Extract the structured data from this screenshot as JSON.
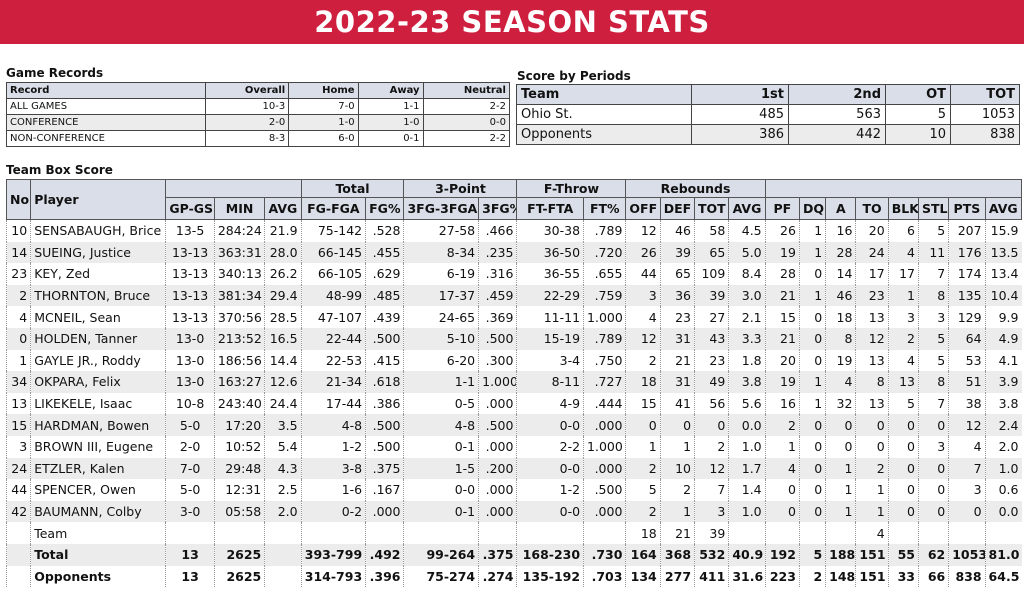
{
  "title": "2022-23 SEASON STATS",
  "game_records": {
    "heading": "Game Records",
    "headers": [
      "Record",
      "Overall",
      "Home",
      "Away",
      "Neutral"
    ],
    "rows": [
      [
        "ALL GAMES",
        "10-3",
        "7-0",
        "1-1",
        "2-2"
      ],
      [
        "CONFERENCE",
        "2-0",
        "1-0",
        "1-0",
        "0-0"
      ],
      [
        "NON-CONFERENCE",
        "8-3",
        "6-0",
        "0-1",
        "2-2"
      ]
    ]
  },
  "score_by_periods": {
    "heading": "Score by Periods",
    "headers": [
      "Team",
      "1st",
      "2nd",
      "OT",
      "TOT"
    ],
    "rows": [
      [
        "Ohio St.",
        "485",
        "563",
        "5",
        "1053"
      ],
      [
        "Opponents",
        "386",
        "442",
        "10",
        "838"
      ]
    ]
  },
  "team_box_score": {
    "heading": "Team Box Score",
    "group_headers": {
      "no": "No.",
      "player": "Player",
      "total": "Total",
      "three_point": "3-Point",
      "free_throw": "F-Throw",
      "rebounds": "Rebounds"
    },
    "columns": [
      "GP-GS",
      "MIN",
      "AVG",
      "FG-FGA",
      "FG%",
      "3FG-3FGA",
      "3FG%",
      "FT-FTA",
      "FT%",
      "OFF",
      "DEF",
      "TOT",
      "AVG",
      "PF",
      "DQ",
      "A",
      "TO",
      "BLK",
      "STL",
      "PTS",
      "AVG"
    ],
    "players": [
      [
        "10",
        "SENSABAUGH, Brice",
        "13-5",
        "284:24",
        "21.9",
        "75-142",
        ".528",
        "27-58",
        ".466",
        "30-38",
        ".789",
        "12",
        "46",
        "58",
        "4.5",
        "26",
        "1",
        "16",
        "20",
        "6",
        "5",
        "207",
        "15.9"
      ],
      [
        "14",
        "SUEING, Justice",
        "13-13",
        "363:31",
        "28.0",
        "66-145",
        ".455",
        "8-34",
        ".235",
        "36-50",
        ".720",
        "26",
        "39",
        "65",
        "5.0",
        "19",
        "1",
        "28",
        "24",
        "4",
        "11",
        "176",
        "13.5"
      ],
      [
        "23",
        "KEY, Zed",
        "13-13",
        "340:13",
        "26.2",
        "66-105",
        ".629",
        "6-19",
        ".316",
        "36-55",
        ".655",
        "44",
        "65",
        "109",
        "8.4",
        "28",
        "0",
        "14",
        "17",
        "17",
        "7",
        "174",
        "13.4"
      ],
      [
        "2",
        "THORNTON, Bruce",
        "13-13",
        "381:34",
        "29.4",
        "48-99",
        ".485",
        "17-37",
        ".459",
        "22-29",
        ".759",
        "3",
        "36",
        "39",
        "3.0",
        "21",
        "1",
        "46",
        "23",
        "1",
        "8",
        "135",
        "10.4"
      ],
      [
        "4",
        "MCNEIL, Sean",
        "13-13",
        "370:56",
        "28.5",
        "47-107",
        ".439",
        "24-65",
        ".369",
        "11-11",
        "1.000",
        "4",
        "23",
        "27",
        "2.1",
        "15",
        "0",
        "18",
        "13",
        "3",
        "3",
        "129",
        "9.9"
      ],
      [
        "0",
        "HOLDEN, Tanner",
        "13-0",
        "213:52",
        "16.5",
        "22-44",
        ".500",
        "5-10",
        ".500",
        "15-19",
        ".789",
        "12",
        "31",
        "43",
        "3.3",
        "21",
        "0",
        "8",
        "12",
        "2",
        "5",
        "64",
        "4.9"
      ],
      [
        "1",
        "GAYLE JR., Roddy",
        "13-0",
        "186:56",
        "14.4",
        "22-53",
        ".415",
        "6-20",
        ".300",
        "3-4",
        ".750",
        "2",
        "21",
        "23",
        "1.8",
        "20",
        "0",
        "19",
        "13",
        "4",
        "5",
        "53",
        "4.1"
      ],
      [
        "34",
        "OKPARA, Felix",
        "13-0",
        "163:27",
        "12.6",
        "21-34",
        ".618",
        "1-1",
        "1.000",
        "8-11",
        ".727",
        "18",
        "31",
        "49",
        "3.8",
        "19",
        "1",
        "4",
        "8",
        "13",
        "8",
        "51",
        "3.9"
      ],
      [
        "13",
        "LIKEKELE, Isaac",
        "10-8",
        "243:40",
        "24.4",
        "17-44",
        ".386",
        "0-5",
        ".000",
        "4-9",
        ".444",
        "15",
        "41",
        "56",
        "5.6",
        "16",
        "1",
        "32",
        "13",
        "5",
        "7",
        "38",
        "3.8"
      ],
      [
        "15",
        "HARDMAN, Bowen",
        "5-0",
        "17:20",
        "3.5",
        "4-8",
        ".500",
        "4-8",
        ".500",
        "0-0",
        ".000",
        "0",
        "0",
        "0",
        "0.0",
        "2",
        "0",
        "0",
        "0",
        "0",
        "0",
        "12",
        "2.4"
      ],
      [
        "3",
        "BROWN III, Eugene",
        "2-0",
        "10:52",
        "5.4",
        "1-2",
        ".500",
        "0-1",
        ".000",
        "2-2",
        "1.000",
        "1",
        "1",
        "2",
        "1.0",
        "1",
        "0",
        "0",
        "0",
        "0",
        "3",
        "4",
        "2.0"
      ],
      [
        "24",
        "ETZLER, Kalen",
        "7-0",
        "29:48",
        "4.3",
        "3-8",
        ".375",
        "1-5",
        ".200",
        "0-0",
        ".000",
        "2",
        "10",
        "12",
        "1.7",
        "4",
        "0",
        "1",
        "2",
        "0",
        "0",
        "7",
        "1.0"
      ],
      [
        "44",
        "SPENCER, Owen",
        "5-0",
        "12:31",
        "2.5",
        "1-6",
        ".167",
        "0-0",
        ".000",
        "1-2",
        ".500",
        "5",
        "2",
        "7",
        "1.4",
        "0",
        "0",
        "1",
        "1",
        "0",
        "0",
        "3",
        "0.6"
      ],
      [
        "42",
        "BAUMANN, Colby",
        "3-0",
        "05:58",
        "2.0",
        "0-2",
        ".000",
        "0-1",
        ".000",
        "0-0",
        ".000",
        "2",
        "1",
        "3",
        "1.0",
        "0",
        "0",
        "1",
        "1",
        "0",
        "0",
        "0",
        "0.0"
      ]
    ],
    "team_row": [
      "",
      "Team",
      "",
      "",
      "",
      "",
      "",
      "",
      "",
      "",
      "",
      "18",
      "21",
      "39",
      "",
      "",
      "",
      "",
      "4",
      "",
      "",
      "",
      ""
    ],
    "total_row": [
      "",
      "Total",
      "13",
      "2625",
      "",
      "393-799",
      ".492",
      "99-264",
      ".375",
      "168-230",
      ".730",
      "164",
      "368",
      "532",
      "40.9",
      "192",
      "5",
      "188",
      "151",
      "55",
      "62",
      "1053",
      "81.0"
    ],
    "opponents_row": [
      "",
      "Opponents",
      "13",
      "2625",
      "",
      "314-793",
      ".396",
      "75-274",
      ".274",
      "135-192",
      ".703",
      "134",
      "277",
      "411",
      "31.6",
      "223",
      "2",
      "148",
      "151",
      "33",
      "66",
      "838",
      "64.5"
    ]
  }
}
